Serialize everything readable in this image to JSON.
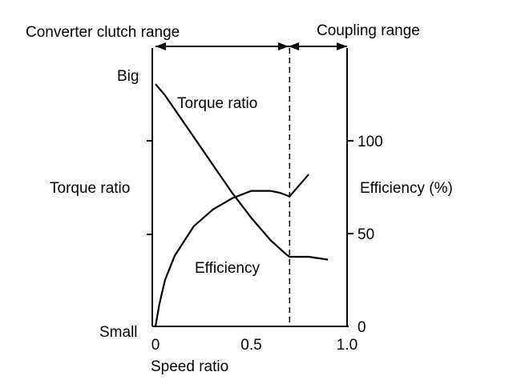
{
  "chart_data": {
    "type": "line",
    "range_labels": {
      "left": "Converter clutch range",
      "right": "Coupling range",
      "boundary_x": 0.7
    },
    "x_axis": {
      "label": "Speed ratio",
      "lim": [
        0,
        1.0
      ],
      "ticks": [
        0,
        0.5,
        1.0
      ],
      "tick_labels": [
        "0",
        "0.5",
        "1.0"
      ]
    },
    "left_axis": {
      "label": "Torque ratio",
      "top_label": "Big",
      "bottom_label": "Small",
      "lim": [
        0,
        1
      ]
    },
    "right_axis": {
      "label": "Efficiency (%)",
      "lim": [
        0,
        150
      ],
      "ticks": [
        0,
        50,
        100
      ],
      "tick_labels": [
        "0",
        "50",
        "100"
      ]
    },
    "series": [
      {
        "name": "Torque ratio",
        "axis": "left",
        "x": [
          0,
          0.05,
          0.1,
          0.2,
          0.3,
          0.4,
          0.5,
          0.6,
          0.68,
          0.7,
          0.75,
          0.8,
          0.9
        ],
        "y": [
          0.87,
          0.83,
          0.78,
          0.68,
          0.58,
          0.48,
          0.39,
          0.31,
          0.26,
          0.25,
          0.25,
          0.25,
          0.24
        ]
      },
      {
        "name": "Efficiency",
        "axis": "right",
        "x": [
          0,
          0.02,
          0.05,
          0.1,
          0.2,
          0.3,
          0.4,
          0.5,
          0.6,
          0.65,
          0.7,
          0.8
        ],
        "y": [
          0,
          12,
          25,
          38,
          54,
          63,
          69,
          73,
          73,
          72,
          70,
          82
        ]
      }
    ]
  }
}
